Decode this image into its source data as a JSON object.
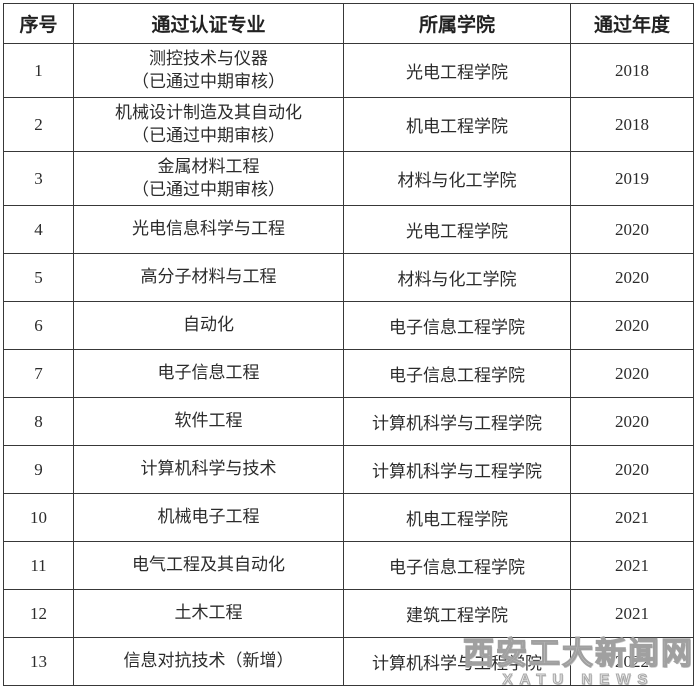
{
  "table": {
    "headers": [
      "序号",
      "通过认证专业",
      "所属学院",
      "通过年度"
    ],
    "rows": [
      {
        "no": "1",
        "major": "测控技术与仪器",
        "note": "（已通过中期审核）",
        "college": "光电工程学院",
        "year": "2018"
      },
      {
        "no": "2",
        "major": "机械设计制造及其自动化",
        "note": "（已通过中期审核）",
        "college": "机电工程学院",
        "year": "2018"
      },
      {
        "no": "3",
        "major": "金属材料工程",
        "note": "（已通过中期审核）",
        "college": "材料与化工学院",
        "year": "2019"
      },
      {
        "no": "4",
        "major": "光电信息科学与工程",
        "note": "",
        "college": "光电工程学院",
        "year": "2020"
      },
      {
        "no": "5",
        "major": "高分子材料与工程",
        "note": "",
        "college": "材料与化工学院",
        "year": "2020"
      },
      {
        "no": "6",
        "major": "自动化",
        "note": "",
        "college": "电子信息工程学院",
        "year": "2020"
      },
      {
        "no": "7",
        "major": "电子信息工程",
        "note": "",
        "college": "电子信息工程学院",
        "year": "2020"
      },
      {
        "no": "8",
        "major": "软件工程",
        "note": "",
        "college": "计算机科学与工程学院",
        "year": "2020"
      },
      {
        "no": "9",
        "major": "计算机科学与技术",
        "note": "",
        "college": "计算机科学与工程学院",
        "year": "2020"
      },
      {
        "no": "10",
        "major": "机械电子工程",
        "note": "",
        "college": "机电工程学院",
        "year": "2021"
      },
      {
        "no": "11",
        "major": "电气工程及其自动化",
        "note": "",
        "college": "电子信息工程学院",
        "year": "2021"
      },
      {
        "no": "12",
        "major": "土木工程",
        "note": "",
        "college": "建筑工程学院",
        "year": "2021"
      },
      {
        "no": "13",
        "major": "信息对抗技术（新增）",
        "note": "",
        "college": "计算机科学与工程学院",
        "year": "2022"
      }
    ]
  },
  "watermark": {
    "cn": "西安工大新闻网",
    "en": "XATU NEWS"
  },
  "colors": {
    "border": "#383838",
    "text": "#2b2b2b",
    "background": "#ffffff",
    "watermark": "#a8a8a8"
  }
}
